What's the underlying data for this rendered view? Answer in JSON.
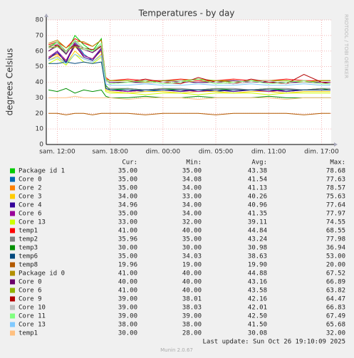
{
  "chart_data": {
    "type": "line",
    "title": "Temperatures - by day",
    "y_label": "degrees Celsius",
    "watermark": "RRDTOOL / TOBI OETIKER",
    "last_update": "Last update: Sun Oct 26 19:10:09 2025",
    "version": "Munin 2.0.67",
    "legend_headers": [
      "Cur:",
      "Min:",
      "Avg:",
      "Max:"
    ],
    "grid": true,
    "x": [
      11,
      12,
      13,
      14,
      15,
      16,
      17,
      17.5,
      18,
      20,
      22,
      24,
      26,
      28,
      30,
      32,
      34,
      36,
      38,
      40,
      42,
      43
    ],
    "xlim": [
      10.75,
      43.1
    ],
    "xticks": [
      {
        "value": 12,
        "label": "sam. 12:00"
      },
      {
        "value": 18,
        "label": "sam. 18:00"
      },
      {
        "value": 24,
        "label": "dim. 00:00"
      },
      {
        "value": 30,
        "label": "dim. 05:00"
      },
      {
        "value": 36,
        "label": "dim. 11:00"
      },
      {
        "value": 42,
        "label": "dim. 17:00"
      }
    ],
    "ylim": [
      0,
      80
    ],
    "yticks": [
      0,
      10,
      20,
      30,
      40,
      50,
      60,
      70,
      80
    ],
    "series": [
      {
        "name": "Package id 1",
        "color": "#00cc00",
        "cur": "35.00",
        "min": "35.00",
        "avg": "43.38",
        "max": "78.68",
        "values": [
          62,
          66,
          58,
          70,
          64,
          60,
          68,
          38,
          35,
          36,
          35,
          36,
          35,
          35,
          36,
          35,
          35,
          36,
          35,
          35,
          36,
          35
        ]
      },
      {
        "name": "Core 0",
        "color": "#0066b3",
        "cur": "35.00",
        "min": "34.08",
        "avg": "41.54",
        "max": "77.63",
        "values": [
          55,
          60,
          52,
          66,
          58,
          54,
          62,
          36,
          35,
          35,
          34,
          35,
          35,
          35,
          34,
          35,
          35,
          35,
          34,
          35,
          35,
          35
        ]
      },
      {
        "name": "Core 2",
        "color": "#ff8000",
        "cur": "35.00",
        "min": "34.00",
        "avg": "41.13",
        "max": "78.57",
        "values": [
          56,
          58,
          54,
          63,
          57,
          55,
          60,
          36,
          35,
          34,
          35,
          35,
          34,
          35,
          35,
          34,
          35,
          35,
          34,
          35,
          35,
          35
        ]
      },
      {
        "name": "Core 3",
        "color": "#ffcc00",
        "cur": "34.00",
        "min": "33.00",
        "avg": "40.26",
        "max": "75.63",
        "values": [
          54,
          57,
          52,
          60,
          55,
          53,
          58,
          35,
          34,
          33,
          34,
          34,
          33,
          34,
          34,
          33,
          34,
          34,
          33,
          34,
          34,
          34
        ]
      },
      {
        "name": "Core 4",
        "color": "#330099",
        "cur": "34.96",
        "min": "34.00",
        "avg": "40.96",
        "max": "77.64",
        "values": [
          55,
          59,
          53,
          64,
          56,
          54,
          61,
          36,
          35,
          34,
          35,
          35,
          34,
          35,
          35,
          34,
          35,
          35,
          34,
          35,
          35,
          35
        ]
      },
      {
        "name": "Core 6",
        "color": "#990099",
        "cur": "35.00",
        "min": "34.00",
        "avg": "41.35",
        "max": "77.97",
        "values": [
          56,
          60,
          54,
          65,
          57,
          55,
          62,
          36,
          35,
          34,
          35,
          35,
          35,
          34,
          35,
          35,
          35,
          34,
          35,
          35,
          35,
          35
        ]
      },
      {
        "name": "Core 13",
        "color": "#ccff00",
        "cur": "33.00",
        "min": "32.00",
        "avg": "39.11",
        "max": "74.55",
        "values": [
          52,
          55,
          51,
          58,
          53,
          52,
          56,
          34,
          33,
          33,
          32,
          33,
          33,
          32,
          33,
          33,
          33,
          32,
          33,
          33,
          33,
          33
        ]
      },
      {
        "name": "temp1",
        "color": "#ff0000",
        "cur": "41.00",
        "min": "40.00",
        "avg": "44.84",
        "max": "68.55",
        "values": [
          64,
          66,
          62,
          68,
          65,
          63,
          67,
          43,
          41,
          42,
          41,
          41,
          42,
          41,
          41,
          42,
          41,
          41,
          42,
          41,
          41,
          41
        ]
      },
      {
        "name": "temp2",
        "color": "#808080",
        "cur": "35.96",
        "min": "35.00",
        "avg": "43.24",
        "max": "77.98",
        "values": [
          60,
          63,
          58,
          66,
          61,
          59,
          64,
          37,
          36,
          36,
          35,
          36,
          36,
          35,
          36,
          36,
          35,
          36,
          36,
          35,
          36,
          36
        ]
      },
      {
        "name": "temp3",
        "color": "#008f00",
        "cur": "30.00",
        "min": "30.00",
        "avg": "30.98",
        "max": "36.94",
        "values": [
          35,
          34,
          36,
          33,
          35,
          34,
          35,
          31,
          30,
          30,
          31,
          30,
          30,
          31,
          30,
          30,
          30,
          31,
          30,
          30,
          30,
          30
        ]
      },
      {
        "name": "temp6",
        "color": "#00487d",
        "cur": "35.00",
        "min": "34.03",
        "avg": "38.63",
        "max": "53.00",
        "values": [
          52,
          52,
          53,
          52,
          53,
          52,
          53,
          36,
          35,
          35,
          35,
          35,
          35,
          35,
          35,
          35,
          35,
          35,
          35,
          35,
          35,
          35
        ]
      },
      {
        "name": "temp8",
        "color": "#b35a00",
        "cur": "19.96",
        "min": "19.00",
        "avg": "19.90",
        "max": "20.00",
        "values": [
          20,
          20,
          19,
          20,
          20,
          19,
          20,
          20,
          20,
          20,
          19,
          20,
          20,
          20,
          19,
          20,
          20,
          20,
          20,
          19,
          20,
          20
        ]
      },
      {
        "name": "Package id 0",
        "color": "#b38f00",
        "cur": "41.00",
        "min": "40.00",
        "avg": "44.88",
        "max": "67.52",
        "values": [
          65,
          67,
          62,
          66,
          66,
          63,
          67,
          42,
          41,
          41,
          40,
          41,
          41,
          40,
          41,
          41,
          40,
          41,
          41,
          40,
          41,
          41
        ]
      },
      {
        "name": "Core 0",
        "color": "#6b006b",
        "cur": "40.00",
        "min": "40.00",
        "avg": "43.16",
        "max": "66.89",
        "values": [
          60,
          64,
          58,
          66,
          61,
          59,
          63,
          41,
          40,
          40,
          40,
          41,
          40,
          40,
          40,
          41,
          40,
          40,
          40,
          40,
          40,
          40
        ]
      },
      {
        "name": "Core 6",
        "color": "#8fb300",
        "cur": "41.00",
        "min": "40.00",
        "avg": "43.58",
        "max": "63.82",
        "values": [
          62,
          63,
          60,
          63,
          61,
          60,
          63,
          42,
          41,
          41,
          40,
          41,
          41,
          42,
          41,
          40,
          41,
          41,
          41,
          40,
          41,
          41
        ]
      },
      {
        "name": "Core 9",
        "color": "#b30000",
        "cur": "39.00",
        "min": "38.01",
        "avg": "42.16",
        "max": "64.47",
        "values": [
          63,
          64,
          60,
          64,
          62,
          61,
          63,
          42,
          39,
          40,
          42,
          40,
          39,
          43,
          40,
          39,
          42,
          40,
          39,
          45,
          40,
          39
        ]
      },
      {
        "name": "Core 10",
        "color": "#bebebe",
        "cur": "39.00",
        "min": "38.03",
        "avg": "42.01",
        "max": "66.83",
        "values": [
          62,
          65,
          59,
          66,
          61,
          60,
          64,
          41,
          39,
          40,
          39,
          40,
          41,
          39,
          40,
          39,
          40,
          41,
          39,
          40,
          39,
          39
        ]
      },
      {
        "name": "Core 11",
        "color": "#80ff80",
        "cur": "39.00",
        "min": "39.00",
        "avg": "42.50",
        "max": "67.49",
        "values": [
          63,
          66,
          60,
          67,
          62,
          60,
          65,
          42,
          39,
          40,
          41,
          39,
          40,
          42,
          39,
          40,
          41,
          39,
          40,
          41,
          39,
          39
        ]
      },
      {
        "name": "Core 13",
        "color": "#80c9ff",
        "cur": "38.00",
        "min": "38.00",
        "avg": "41.50",
        "max": "65.68",
        "values": [
          54,
          56,
          52,
          58,
          55,
          53,
          57,
          39,
          38,
          38,
          39,
          38,
          38,
          39,
          38,
          38,
          39,
          38,
          38,
          39,
          38,
          38
        ]
      },
      {
        "name": "temp1",
        "color": "#ffc080",
        "cur": "30.00",
        "min": "28.00",
        "avg": "30.08",
        "max": "32.00",
        "values": [
          30,
          30,
          30,
          31,
          30,
          30,
          30,
          30,
          30,
          29,
          30,
          30,
          30,
          29,
          30,
          30,
          30,
          30,
          29,
          30,
          30,
          30
        ]
      }
    ]
  }
}
